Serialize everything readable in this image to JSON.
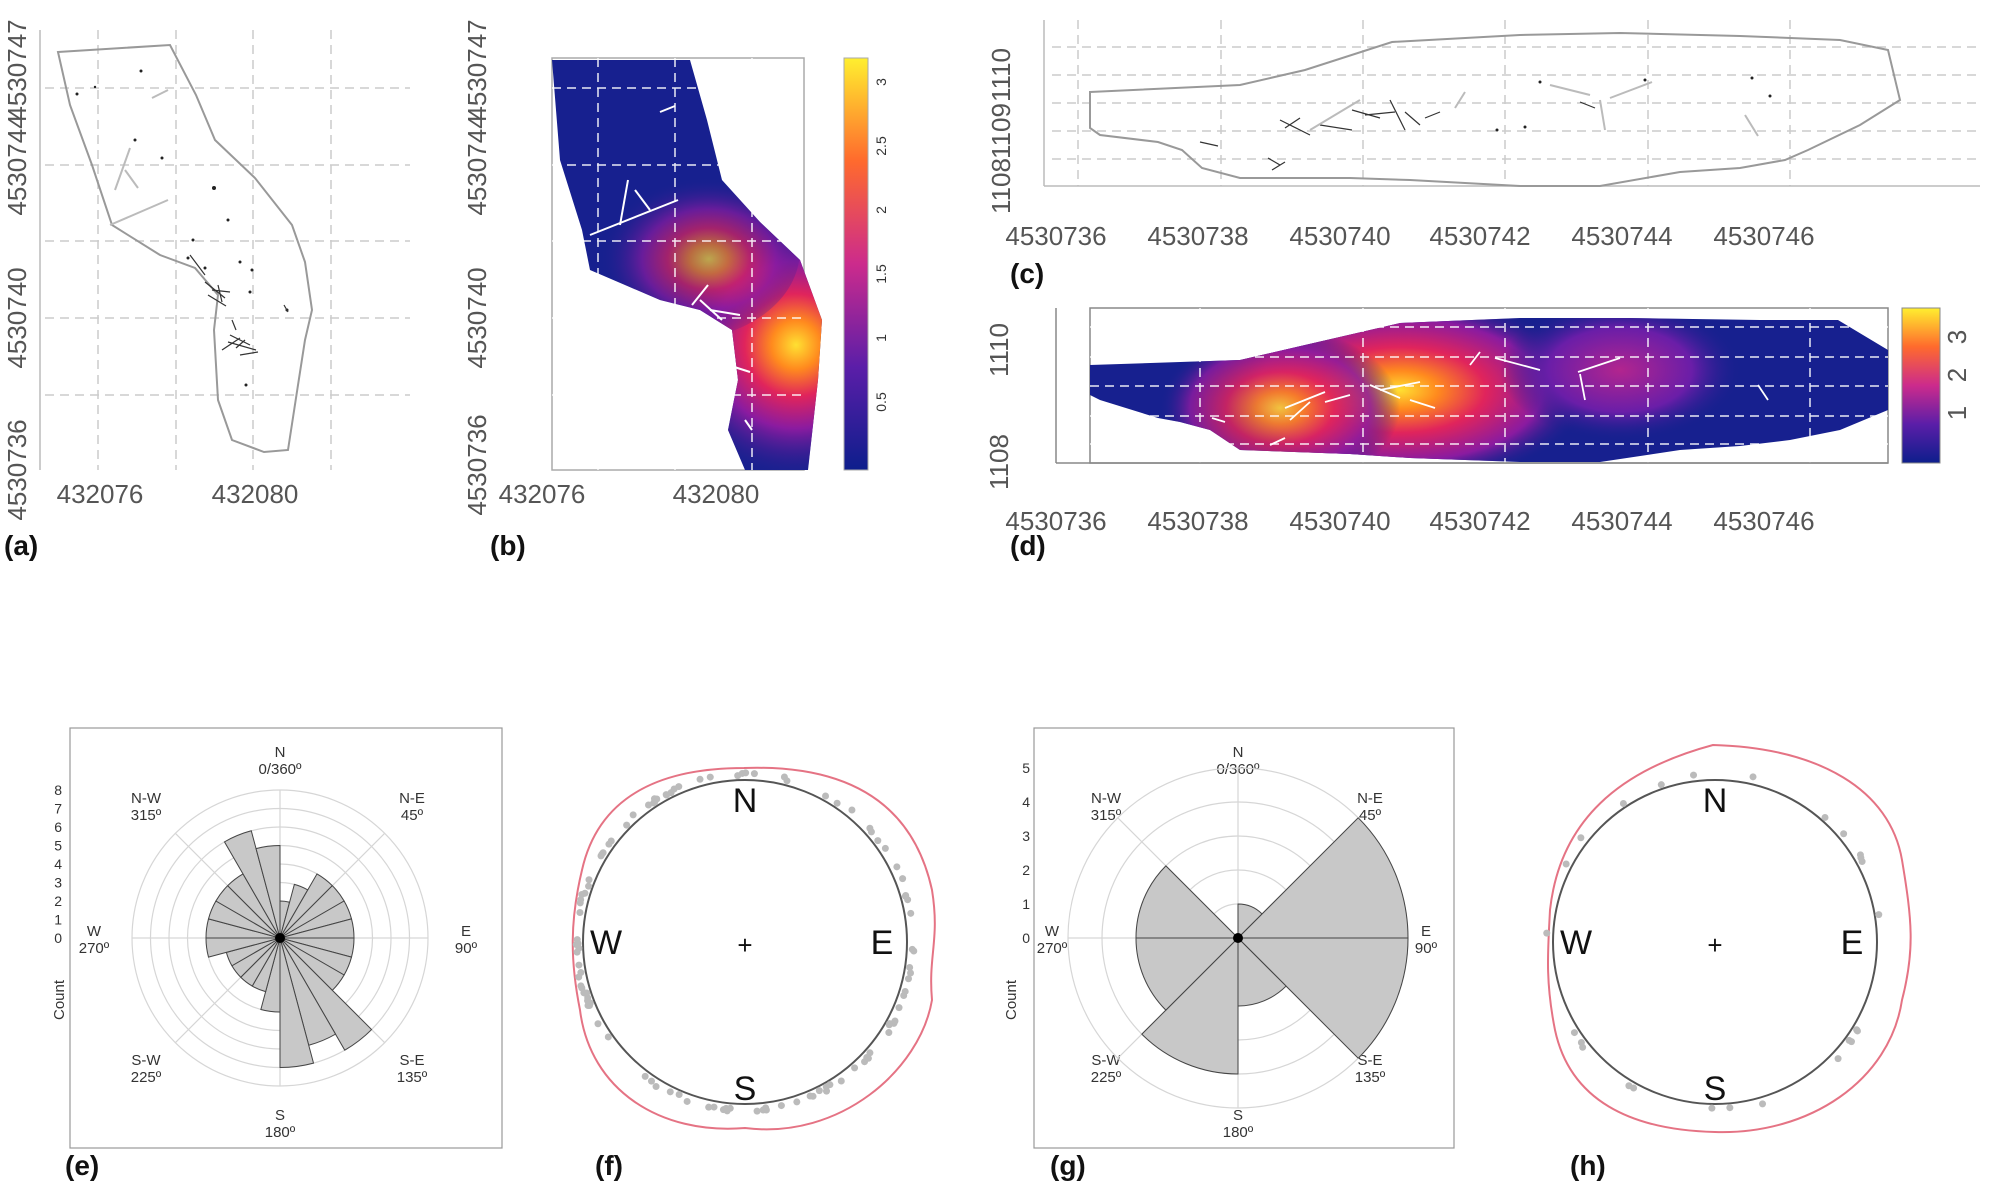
{
  "panels": {
    "a": {
      "label": "(a)"
    },
    "b": {
      "label": "(b)"
    },
    "c": {
      "label": "(c)"
    },
    "d": {
      "label": "(d)"
    },
    "e": {
      "label": "(e)"
    },
    "f": {
      "label": "(f)"
    },
    "g": {
      "label": "(g)"
    },
    "h": {
      "label": "(h)"
    }
  },
  "maps": {
    "ab_y_ticks": [
      "4530736",
      "4530740",
      "4530744",
      "4530747"
    ],
    "ab_x_ticks": [
      "432076",
      "432080"
    ],
    "cd_x_ticks": [
      "4530736",
      "4530738",
      "4530740",
      "4530742",
      "4530744",
      "4530746"
    ],
    "c_y_ticks": [
      "1108",
      "1109",
      "1110"
    ],
    "d_y_ticks": [
      "1108",
      "1110"
    ],
    "b_colorbar_ticks": [
      "0.5",
      "1",
      "1.5",
      "2",
      "2.5",
      "3"
    ],
    "d_colorbar_ticks": [
      "1",
      "2",
      "3"
    ]
  },
  "rose_labels": {
    "n": "N",
    "n_deg": "0/360º",
    "ne": "N-E",
    "ne_deg": "45º",
    "e": "E",
    "e_deg": "90º",
    "se": "S-E",
    "se_deg": "135º",
    "s": "S",
    "s_deg": "180º",
    "sw": "S-W",
    "sw_deg": "225º",
    "w": "W",
    "w_deg": "270º",
    "nw": "N-W",
    "nw_deg": "315º",
    "ylabel": "Count"
  },
  "compass": {
    "n": "N",
    "e": "E",
    "s": "S",
    "w": "W",
    "center": "+"
  },
  "chart_data": [
    {
      "type": "rose",
      "panel": "e",
      "ylabel": "Count",
      "radial_ticks": [
        0,
        1,
        2,
        3,
        4,
        5,
        6,
        7,
        8
      ],
      "bin_width_deg": 15,
      "bin_centers_deg": [
        7.5,
        22.5,
        37.5,
        52.5,
        67.5,
        82.5,
        97.5,
        112.5,
        127.5,
        142.5,
        157.5,
        172.5,
        187.5,
        202.5,
        217.5,
        232.5,
        247.5,
        262.5,
        277.5,
        292.5,
        307.5,
        322.5,
        337.5,
        352.5
      ],
      "values": [
        2,
        3,
        4,
        4,
        4,
        4,
        4,
        4,
        4,
        7,
        6,
        7,
        4,
        3,
        3,
        3,
        3,
        4,
        4,
        4,
        4,
        4,
        6,
        5
      ],
      "rlim": [
        0,
        8
      ]
    },
    {
      "type": "rose",
      "panel": "g",
      "ylabel": "Count",
      "radial_ticks": [
        0,
        1,
        2,
        3,
        4,
        5
      ],
      "bin_width_deg": 45,
      "bin_centers_deg": [
        22.5,
        67.5,
        112.5,
        157.5,
        202.5,
        247.5,
        292.5,
        337.5
      ],
      "values": [
        1,
        5,
        5,
        2,
        4,
        3,
        3,
        0
      ],
      "rlim": [
        0,
        5
      ]
    }
  ]
}
